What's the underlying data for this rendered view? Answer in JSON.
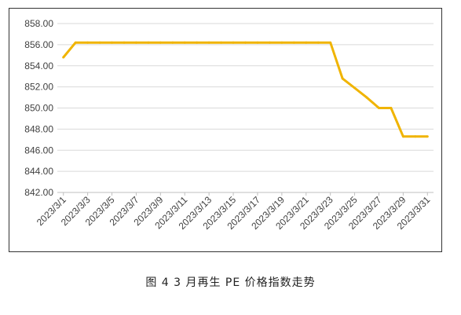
{
  "caption": "图 4  3 月再生 PE 价格指数走势",
  "chart_data": {
    "type": "line",
    "title": "",
    "xlabel": "",
    "ylabel": "",
    "ylim": [
      842.0,
      858.0
    ],
    "yticks": [
      "842.00",
      "844.00",
      "846.00",
      "848.00",
      "850.00",
      "852.00",
      "854.00",
      "856.00",
      "858.00"
    ],
    "x": [
      "2023/3/1",
      "2023/3/2",
      "2023/3/3",
      "2023/3/4",
      "2023/3/5",
      "2023/3/6",
      "2023/3/7",
      "2023/3/8",
      "2023/3/9",
      "2023/3/10",
      "2023/3/11",
      "2023/3/12",
      "2023/3/13",
      "2023/3/14",
      "2023/3/15",
      "2023/3/16",
      "2023/3/17",
      "2023/3/18",
      "2023/3/19",
      "2023/3/20",
      "2023/3/21",
      "2023/3/22",
      "2023/3/23",
      "2023/3/24",
      "2023/3/25",
      "2023/3/26",
      "2023/3/27",
      "2023/3/28",
      "2023/3/29",
      "2023/3/30",
      "2023/3/31"
    ],
    "xtick_labels": [
      "2023/3/1",
      "2023/3/3",
      "2023/3/5",
      "2023/3/7",
      "2023/3/9",
      "2023/3/11",
      "2023/3/13",
      "2023/3/15",
      "2023/3/17",
      "2023/3/19",
      "2023/3/21",
      "2023/3/23",
      "2023/3/25",
      "2023/3/27",
      "2023/3/29",
      "2023/3/31"
    ],
    "series": [
      {
        "values": [
          854.8,
          856.2,
          856.2,
          856.2,
          856.2,
          856.2,
          856.2,
          856.2,
          856.2,
          856.2,
          856.2,
          856.2,
          856.2,
          856.2,
          856.2,
          856.2,
          856.2,
          856.2,
          856.2,
          856.2,
          856.2,
          856.2,
          856.2,
          852.8,
          851.9,
          851.0,
          850.0,
          850.0,
          847.3,
          847.3,
          847.3
        ]
      }
    ],
    "grid": true,
    "legend": "none",
    "colors": {
      "line": "#F0B400",
      "grid": "#D9D9D9",
      "axis": "#BFBFBF",
      "text": "#404040"
    }
  }
}
